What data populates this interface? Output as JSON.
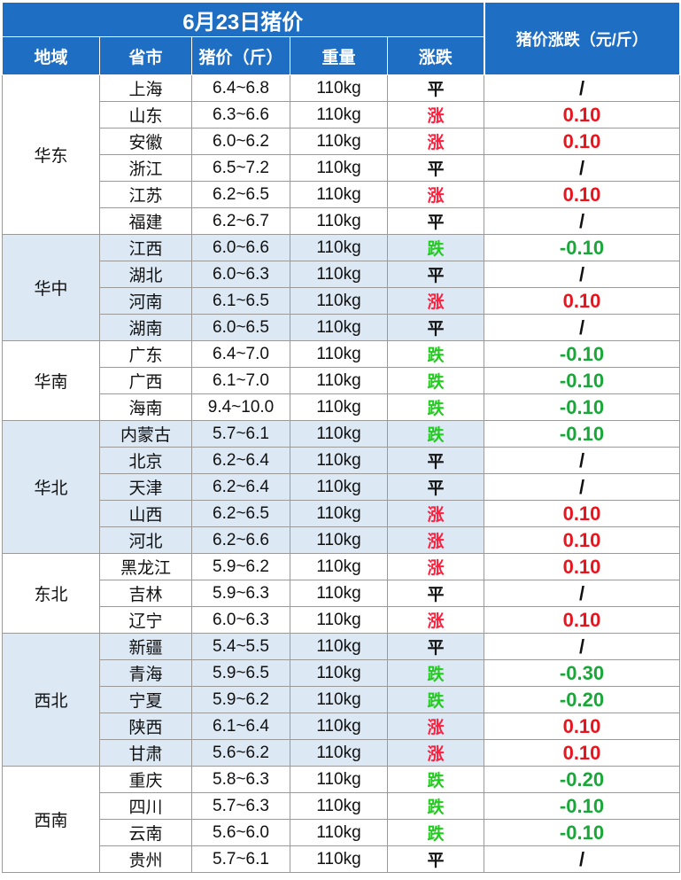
{
  "title": "6月23日猪价",
  "headers": {
    "region": "地域",
    "province": "省市",
    "price": "猪价（斤）",
    "weight": "重量",
    "trend": "涨跌",
    "change": "猪价涨跌（元/斤）"
  },
  "colors": {
    "header_bg": "#1e6ec3",
    "shaded_bg": "#dce8f4",
    "up_trend": "#ff1e3c",
    "down_trend": "#22cc1e",
    "up_change": "#e8141e",
    "down_change": "#17a838"
  },
  "regions": [
    {
      "name": "华东",
      "shaded": false,
      "rows": [
        {
          "province": "上海",
          "price": "6.4~6.8",
          "weight": "110kg",
          "trend": "平",
          "change": "/"
        },
        {
          "province": "山东",
          "price": "6.3~6.6",
          "weight": "110kg",
          "trend": "涨",
          "change": "0.10"
        },
        {
          "province": "安徽",
          "price": "6.0~6.2",
          "weight": "110kg",
          "trend": "涨",
          "change": "0.10"
        },
        {
          "province": "浙江",
          "price": "6.5~7.2",
          "weight": "110kg",
          "trend": "平",
          "change": "/"
        },
        {
          "province": "江苏",
          "price": "6.2~6.5",
          "weight": "110kg",
          "trend": "涨",
          "change": "0.10"
        },
        {
          "province": "福建",
          "price": "6.2~6.7",
          "weight": "110kg",
          "trend": "平",
          "change": "/"
        }
      ]
    },
    {
      "name": "华中",
      "shaded": true,
      "rows": [
        {
          "province": "江西",
          "price": "6.0~6.6",
          "weight": "110kg",
          "trend": "跌",
          "change": "-0.10"
        },
        {
          "province": "湖北",
          "price": "6.0~6.3",
          "weight": "110kg",
          "trend": "平",
          "change": "/"
        },
        {
          "province": "河南",
          "price": "6.1~6.5",
          "weight": "110kg",
          "trend": "涨",
          "change": "0.10"
        },
        {
          "province": "湖南",
          "price": "6.0~6.5",
          "weight": "110kg",
          "trend": "平",
          "change": "/"
        }
      ]
    },
    {
      "name": "华南",
      "shaded": false,
      "rows": [
        {
          "province": "广东",
          "price": "6.4~7.0",
          "weight": "110kg",
          "trend": "跌",
          "change": "-0.10"
        },
        {
          "province": "广西",
          "price": "6.1~7.0",
          "weight": "110kg",
          "trend": "跌",
          "change": "-0.10"
        },
        {
          "province": "海南",
          "price": "9.4~10.0",
          "weight": "110kg",
          "trend": "跌",
          "change": "-0.10"
        }
      ]
    },
    {
      "name": "华北",
      "shaded": true,
      "rows": [
        {
          "province": "内蒙古",
          "price": "5.7~6.1",
          "weight": "110kg",
          "trend": "跌",
          "change": "-0.10"
        },
        {
          "province": "北京",
          "price": "6.2~6.4",
          "weight": "110kg",
          "trend": "平",
          "change": "/"
        },
        {
          "province": "天津",
          "price": "6.2~6.4",
          "weight": "110kg",
          "trend": "平",
          "change": "/"
        },
        {
          "province": "山西",
          "price": "6.2~6.5",
          "weight": "110kg",
          "trend": "涨",
          "change": "0.10"
        },
        {
          "province": "河北",
          "price": "6.2~6.6",
          "weight": "110kg",
          "trend": "涨",
          "change": "0.10"
        }
      ]
    },
    {
      "name": "东北",
      "shaded": false,
      "rows": [
        {
          "province": "黑龙江",
          "price": "5.9~6.2",
          "weight": "110kg",
          "trend": "涨",
          "change": "0.10"
        },
        {
          "province": "吉林",
          "price": "5.9~6.3",
          "weight": "110kg",
          "trend": "平",
          "change": "/"
        },
        {
          "province": "辽宁",
          "price": "6.0~6.3",
          "weight": "110kg",
          "trend": "涨",
          "change": "0.10"
        }
      ]
    },
    {
      "name": "西北",
      "shaded": true,
      "rows": [
        {
          "province": "新疆",
          "price": "5.4~5.5",
          "weight": "110kg",
          "trend": "平",
          "change": "/"
        },
        {
          "province": "青海",
          "price": "5.9~6.5",
          "weight": "110kg",
          "trend": "跌",
          "change": "-0.30"
        },
        {
          "province": "宁夏",
          "price": "5.9~6.2",
          "weight": "110kg",
          "trend": "跌",
          "change": "-0.20"
        },
        {
          "province": "陕西",
          "price": "6.1~6.4",
          "weight": "110kg",
          "trend": "涨",
          "change": "0.10"
        },
        {
          "province": "甘肃",
          "price": "5.6~6.2",
          "weight": "110kg",
          "trend": "涨",
          "change": "0.10"
        }
      ]
    },
    {
      "name": "西南",
      "shaded": false,
      "rows": [
        {
          "province": "重庆",
          "price": "5.8~6.3",
          "weight": "110kg",
          "trend": "跌",
          "change": "-0.20"
        },
        {
          "province": "四川",
          "price": "5.7~6.3",
          "weight": "110kg",
          "trend": "跌",
          "change": "-0.10"
        },
        {
          "province": "云南",
          "price": "5.6~6.0",
          "weight": "110kg",
          "trend": "跌",
          "change": "-0.10"
        },
        {
          "province": "贵州",
          "price": "5.7~6.1",
          "weight": "110kg",
          "trend": "平",
          "change": "/"
        }
      ]
    }
  ]
}
